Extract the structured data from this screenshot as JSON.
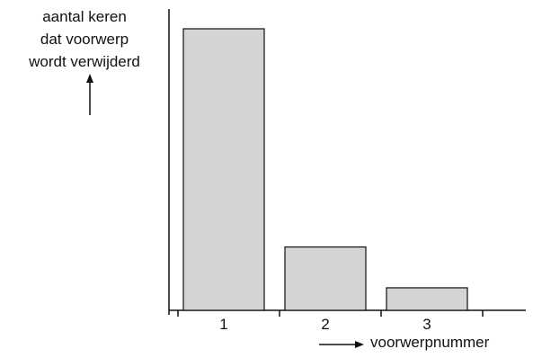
{
  "chart_data": {
    "type": "bar",
    "categories": [
      "1",
      "2",
      "3"
    ],
    "values": [
      100,
      22.5,
      8
    ],
    "ylabel_lines": [
      "aantal keren",
      "dat voorwerp",
      "wordt verwijderd"
    ],
    "xlabel": "voorwerpnummer",
    "title": "",
    "ylim": [
      0,
      100
    ],
    "grid": false,
    "colors": {
      "bar_fill": "#d4d4d4",
      "stroke": "#111111"
    }
  }
}
